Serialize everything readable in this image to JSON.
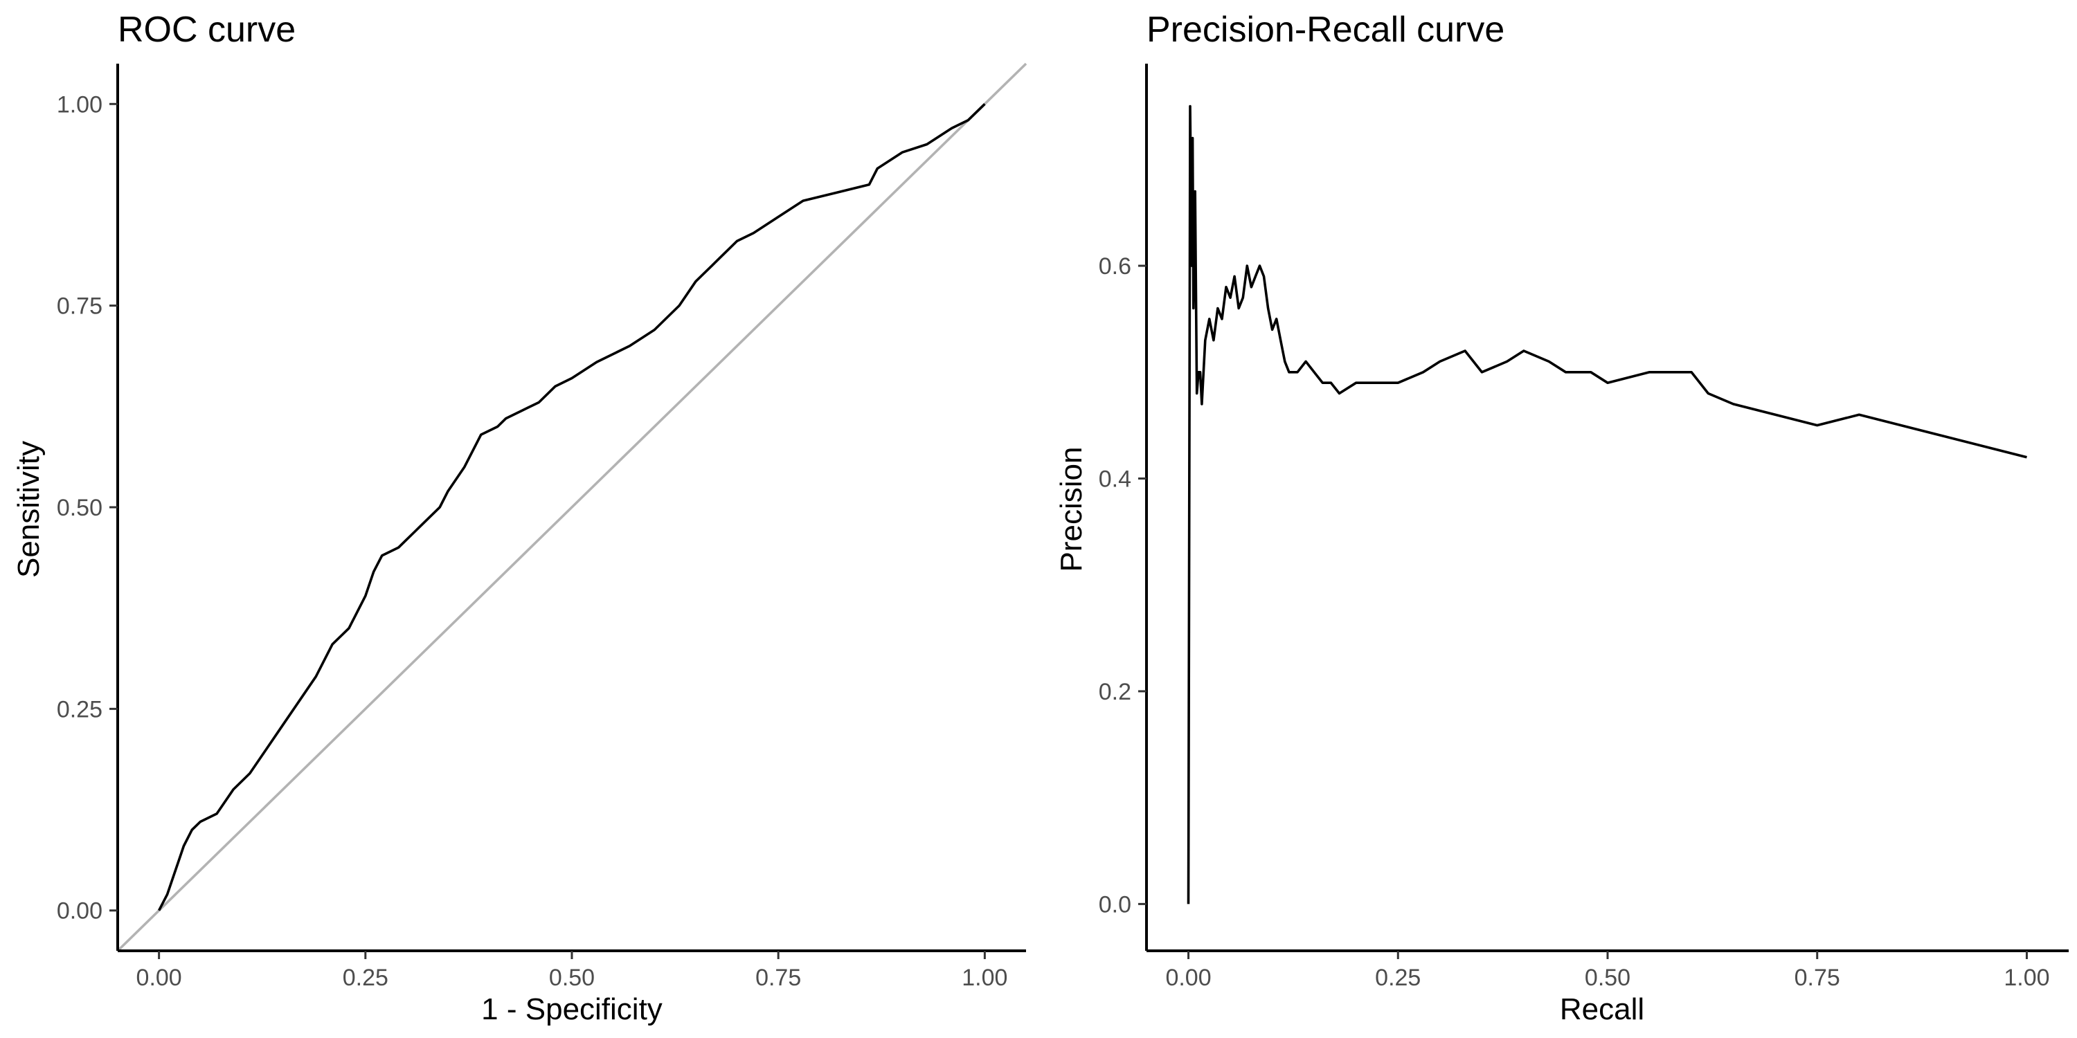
{
  "chart_data": [
    {
      "type": "line",
      "title": "ROC curve",
      "xlabel": "1 - Specificity",
      "ylabel": "Sensitivity",
      "xlim": [
        -0.05,
        1.05
      ],
      "ylim": [
        -0.05,
        1.05
      ],
      "xticks": [
        "0.00",
        "0.25",
        "0.50",
        "0.75",
        "1.00"
      ],
      "yticks": [
        "0.00",
        "0.25",
        "0.50",
        "0.75",
        "1.00"
      ],
      "grid": false,
      "reference_line": {
        "from": [
          -0.05,
          -0.05
        ],
        "to": [
          1.05,
          1.05
        ],
        "color": "#b3b3b3"
      },
      "series": [
        {
          "color": "#000000",
          "x": [
            0.0,
            0.005,
            0.01,
            0.02,
            0.03,
            0.04,
            0.05,
            0.07,
            0.09,
            0.11,
            0.13,
            0.15,
            0.17,
            0.19,
            0.21,
            0.22,
            0.23,
            0.25,
            0.26,
            0.27,
            0.29,
            0.3,
            0.31,
            0.32,
            0.34,
            0.35,
            0.37,
            0.39,
            0.41,
            0.42,
            0.44,
            0.46,
            0.48,
            0.5,
            0.53,
            0.55,
            0.57,
            0.6,
            0.63,
            0.65,
            0.67,
            0.68,
            0.7,
            0.72,
            0.75,
            0.78,
            0.82,
            0.86,
            0.87,
            0.9,
            0.93,
            0.96,
            0.98,
            1.0
          ],
          "y": [
            0.0,
            0.01,
            0.02,
            0.05,
            0.08,
            0.1,
            0.11,
            0.12,
            0.15,
            0.17,
            0.2,
            0.23,
            0.26,
            0.29,
            0.33,
            0.34,
            0.35,
            0.39,
            0.42,
            0.44,
            0.45,
            0.46,
            0.47,
            0.48,
            0.5,
            0.52,
            0.55,
            0.59,
            0.6,
            0.61,
            0.62,
            0.63,
            0.65,
            0.66,
            0.68,
            0.69,
            0.7,
            0.72,
            0.75,
            0.78,
            0.8,
            0.81,
            0.83,
            0.84,
            0.86,
            0.88,
            0.89,
            0.9,
            0.92,
            0.94,
            0.95,
            0.97,
            0.98,
            1.0
          ]
        }
      ]
    },
    {
      "type": "line",
      "title": "Precision-Recall curve",
      "xlabel": "Recall",
      "ylabel": "Precision",
      "xlim": [
        -0.05,
        1.05
      ],
      "ylim": [
        -0.044,
        0.79
      ],
      "xticks": [
        "0.00",
        "0.25",
        "0.50",
        "0.75",
        "1.00"
      ],
      "yticks": [
        "0.0",
        "0.2",
        "0.4",
        "0.6"
      ],
      "grid": false,
      "series": [
        {
          "color": "#000000",
          "x": [
            0.0,
            0.002,
            0.004,
            0.005,
            0.006,
            0.008,
            0.01,
            0.012,
            0.014,
            0.016,
            0.02,
            0.025,
            0.03,
            0.035,
            0.04,
            0.045,
            0.05,
            0.055,
            0.06,
            0.065,
            0.07,
            0.075,
            0.08,
            0.085,
            0.09,
            0.095,
            0.1,
            0.105,
            0.11,
            0.115,
            0.12,
            0.13,
            0.14,
            0.15,
            0.16,
            0.17,
            0.18,
            0.2,
            0.22,
            0.25,
            0.28,
            0.3,
            0.33,
            0.35,
            0.38,
            0.4,
            0.43,
            0.45,
            0.48,
            0.5,
            0.55,
            0.6,
            0.62,
            0.65,
            0.7,
            0.75,
            0.8,
            0.85,
            0.9,
            0.95,
            1.0
          ],
          "y": [
            0.0,
            0.75,
            0.6,
            0.72,
            0.56,
            0.67,
            0.48,
            0.5,
            0.5,
            0.47,
            0.53,
            0.55,
            0.53,
            0.56,
            0.55,
            0.58,
            0.57,
            0.59,
            0.56,
            0.57,
            0.6,
            0.58,
            0.59,
            0.6,
            0.59,
            0.56,
            0.54,
            0.55,
            0.53,
            0.51,
            0.5,
            0.5,
            0.51,
            0.5,
            0.49,
            0.49,
            0.48,
            0.49,
            0.49,
            0.49,
            0.5,
            0.51,
            0.52,
            0.5,
            0.51,
            0.52,
            0.51,
            0.5,
            0.5,
            0.49,
            0.5,
            0.5,
            0.48,
            0.47,
            0.46,
            0.45,
            0.46,
            0.45,
            0.44,
            0.43,
            0.42
          ]
        }
      ]
    }
  ]
}
